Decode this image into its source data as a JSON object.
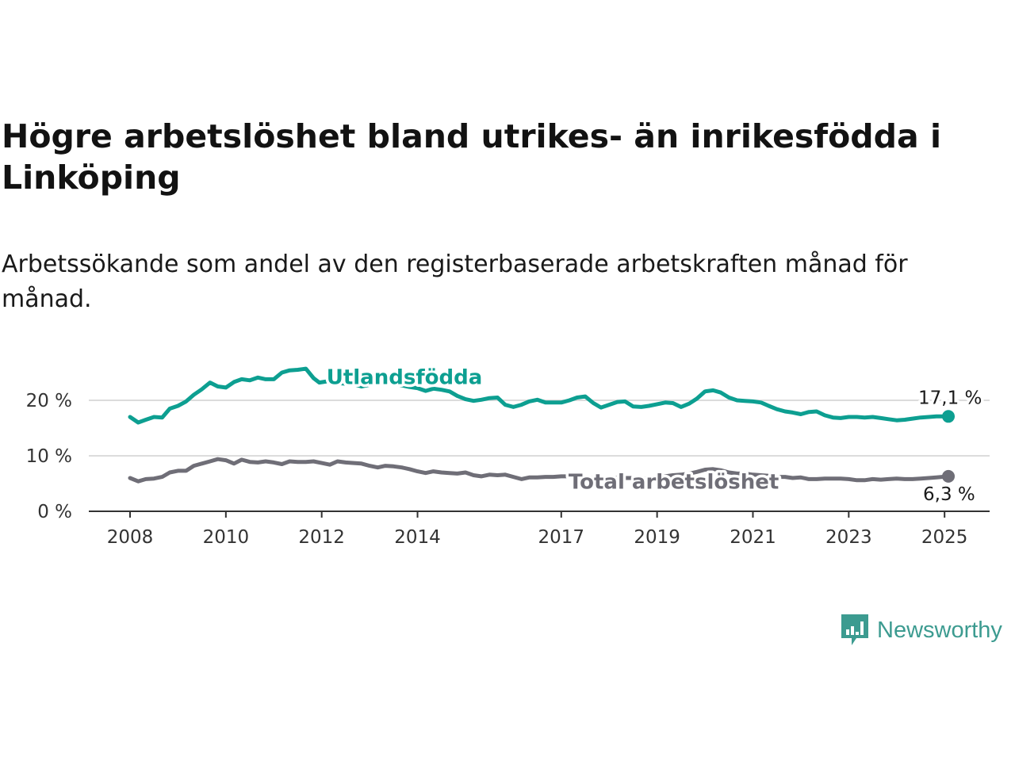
{
  "title": "Högre arbetslöshet bland utrikes- än inrikesfödda i Linköping",
  "subtitle": "Arbetssökande som andel av den registerbaserade arbetskraften månad för månad.",
  "brand": {
    "name": "Newsworthy",
    "icon": "newsworthy-logo-icon",
    "color": "#3c9b90"
  },
  "chart_data": {
    "type": "line",
    "title": "Högre arbetslöshet bland utrikes- än inrikesfödda i Linköping",
    "subtitle": "Arbetssökande som andel av den registerbaserade arbetskraften månad för månad.",
    "xlabel": "",
    "ylabel": "",
    "xlim": [
      2008,
      2025.1
    ],
    "ylim": [
      0,
      25
    ],
    "x_ticks": [
      2008,
      2010,
      2012,
      2014,
      2017,
      2019,
      2021,
      2023,
      2025
    ],
    "x_tick_labels": [
      "2008",
      "2010",
      "2012",
      "2014",
      "2017",
      "2019",
      "2021",
      "2023",
      "2025"
    ],
    "y_ticks": [
      0,
      10,
      20
    ],
    "y_tick_labels": [
      "0 %",
      "10 %",
      "20 %"
    ],
    "grid": "horizontal",
    "legend": "inline",
    "series": [
      {
        "name": "Utlandsfödda",
        "color": "#0d9f91",
        "end_label": "17,1 %",
        "x": [
          2008.0,
          2008.17,
          2008.33,
          2008.5,
          2008.67,
          2008.83,
          2009.0,
          2009.17,
          2009.33,
          2009.5,
          2009.67,
          2009.83,
          2010.0,
          2010.17,
          2010.33,
          2010.5,
          2010.67,
          2010.83,
          2011.0,
          2011.17,
          2011.33,
          2011.5,
          2011.67,
          2011.83,
          2011.95,
          2012.17,
          2012.33,
          2012.5,
          2012.67,
          2012.83,
          2013.0,
          2013.17,
          2013.33,
          2013.5,
          2013.67,
          2013.83,
          2014.0,
          2014.17,
          2014.33,
          2014.5,
          2014.67,
          2014.83,
          2015.0,
          2015.17,
          2015.33,
          2015.5,
          2015.67,
          2015.83,
          2016.0,
          2016.17,
          2016.33,
          2016.5,
          2016.67,
          2016.83,
          2017.0,
          2017.17,
          2017.33,
          2017.5,
          2017.67,
          2017.83,
          2018.0,
          2018.17,
          2018.33,
          2018.5,
          2018.67,
          2018.83,
          2019.0,
          2019.17,
          2019.33,
          2019.5,
          2019.67,
          2019.83,
          2020.0,
          2020.17,
          2020.33,
          2020.5,
          2020.67,
          2020.83,
          2021.0,
          2021.17,
          2021.33,
          2021.5,
          2021.67,
          2021.83,
          2022.0,
          2022.17,
          2022.33,
          2022.5,
          2022.67,
          2022.83,
          2023.0,
          2023.17,
          2023.33,
          2023.5,
          2023.67,
          2023.83,
          2024.0,
          2024.17,
          2024.33,
          2024.5,
          2024.67,
          2024.83,
          2025.08
        ],
        "y": [
          17.0,
          16.0,
          16.5,
          17.0,
          16.9,
          18.5,
          19.0,
          19.8,
          21.0,
          22.0,
          23.2,
          22.5,
          22.3,
          23.3,
          23.8,
          23.6,
          24.1,
          23.8,
          23.8,
          25.0,
          25.4,
          25.5,
          25.7,
          24.0,
          23.2,
          23.5,
          23.1,
          23.0,
          22.9,
          22.5,
          22.8,
          23.5,
          23.3,
          23.0,
          22.7,
          22.4,
          22.2,
          21.7,
          22.1,
          21.9,
          21.6,
          20.8,
          20.2,
          19.9,
          20.1,
          20.4,
          20.5,
          19.2,
          18.8,
          19.2,
          19.8,
          20.1,
          19.6,
          19.6,
          19.6,
          20.0,
          20.5,
          20.7,
          19.5,
          18.7,
          19.2,
          19.7,
          19.8,
          18.9,
          18.8,
          19.0,
          19.3,
          19.6,
          19.5,
          18.8,
          19.4,
          20.3,
          21.6,
          21.8,
          21.4,
          20.5,
          20.0,
          19.9,
          19.8,
          19.6,
          19.0,
          18.4,
          18.0,
          17.8,
          17.5,
          17.9,
          18.0,
          17.3,
          16.9,
          16.8,
          17.0,
          17.0,
          16.9,
          17.0,
          16.8,
          16.6,
          16.4,
          16.5,
          16.7,
          16.9,
          17.0,
          17.1,
          17.1
        ]
      },
      {
        "name": "Total arbetslöshet",
        "color": "#6f6e77",
        "end_label": "6,3 %",
        "x": [
          2008.0,
          2008.17,
          2008.33,
          2008.5,
          2008.67,
          2008.83,
          2009.0,
          2009.17,
          2009.33,
          2009.5,
          2009.67,
          2009.83,
          2010.0,
          2010.17,
          2010.33,
          2010.5,
          2010.67,
          2010.83,
          2011.0,
          2011.17,
          2011.33,
          2011.5,
          2011.67,
          2011.83,
          2012.0,
          2012.17,
          2012.33,
          2012.5,
          2012.67,
          2012.83,
          2013.0,
          2013.17,
          2013.33,
          2013.5,
          2013.67,
          2013.83,
          2014.0,
          2014.17,
          2014.33,
          2014.5,
          2014.67,
          2014.83,
          2015.0,
          2015.17,
          2015.33,
          2015.5,
          2015.67,
          2015.83,
          2016.0,
          2016.17,
          2016.33,
          2016.5,
          2016.67,
          2016.83,
          2017.0,
          2017.17,
          2017.33,
          2017.5,
          2017.67,
          2017.83,
          2018.0,
          2018.17,
          2018.33,
          2018.5,
          2018.67,
          2018.83,
          2019.0,
          2019.17,
          2019.33,
          2019.5,
          2019.67,
          2019.83,
          2020.0,
          2020.17,
          2020.33,
          2020.5,
          2020.67,
          2020.83,
          2021.0,
          2021.17,
          2021.33,
          2021.5,
          2021.67,
          2021.83,
          2022.0,
          2022.17,
          2022.33,
          2022.5,
          2022.67,
          2022.83,
          2023.0,
          2023.17,
          2023.33,
          2023.5,
          2023.67,
          2023.83,
          2024.0,
          2024.17,
          2024.33,
          2024.5,
          2024.67,
          2024.83,
          2025.08
        ],
        "y": [
          6.0,
          5.4,
          5.8,
          5.9,
          6.2,
          7.0,
          7.3,
          7.3,
          8.2,
          8.6,
          9.0,
          9.4,
          9.2,
          8.6,
          9.3,
          8.9,
          8.8,
          9.0,
          8.8,
          8.5,
          9.0,
          8.9,
          8.9,
          9.0,
          8.7,
          8.4,
          9.0,
          8.8,
          8.7,
          8.6,
          8.2,
          7.9,
          8.2,
          8.1,
          7.9,
          7.6,
          7.2,
          6.9,
          7.2,
          7.0,
          6.9,
          6.8,
          7.0,
          6.5,
          6.3,
          6.6,
          6.5,
          6.6,
          6.2,
          5.8,
          6.1,
          6.1,
          6.2,
          6.2,
          6.3,
          6.3,
          6.2,
          6.2,
          6.0,
          5.8,
          6.1,
          6.0,
          6.0,
          6.0,
          5.9,
          5.9,
          6.1,
          6.3,
          6.5,
          6.6,
          6.8,
          7.1,
          7.5,
          7.6,
          7.4,
          7.0,
          6.8,
          6.8,
          6.6,
          6.5,
          6.4,
          6.2,
          6.2,
          6.0,
          6.1,
          5.8,
          5.8,
          5.9,
          5.9,
          5.9,
          5.8,
          5.6,
          5.6,
          5.8,
          5.7,
          5.8,
          5.9,
          5.8,
          5.8,
          5.9,
          6.0,
          6.1,
          6.3
        ]
      }
    ]
  }
}
